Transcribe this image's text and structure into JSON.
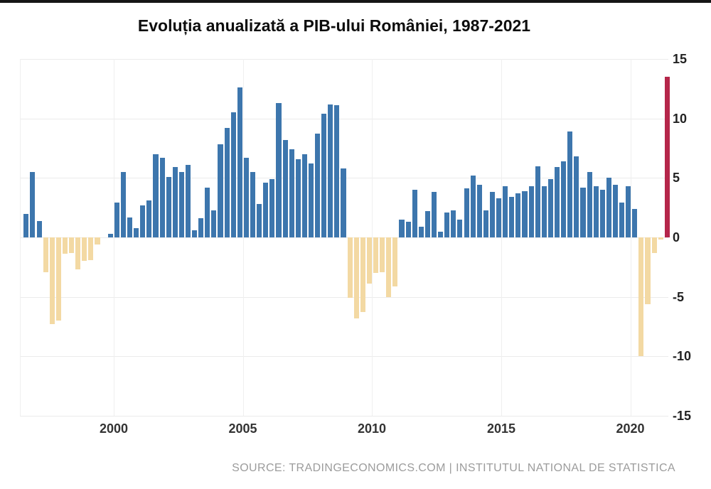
{
  "source_text": "SOURCE: TRADINGECONOMICS.COM | INSTITUTUL NATIONAL DE STATISTICA",
  "colors": {
    "grid": "#ebebeb",
    "vertical_grid": "#efefef",
    "axis_text": "#222222",
    "x_axis_text": "#333333",
    "source_text": "#9c9c9c",
    "top_strip": "#151515"
  },
  "chart_data": {
    "type": "bar",
    "title": "Evoluția anualizată a PIB-ului României, 1987-2021",
    "x_tick_labels": [
      "2000",
      "2005",
      "2010",
      "2015",
      "2020"
    ],
    "y_tick_labels": [
      "15",
      "10",
      "5",
      "0",
      "-5",
      "-10",
      "-15"
    ],
    "y_tick_values": [
      15,
      10,
      5,
      0,
      -5,
      -10,
      -15
    ],
    "ylim": [
      -15,
      15
    ],
    "grid": true,
    "legend": "none",
    "frequency": "quarterly",
    "values": [
      2.0,
      5.5,
      1.4,
      -2.9,
      -7.3,
      -7.0,
      -1.4,
      -1.3,
      -2.7,
      -2.0,
      -1.9,
      -0.6,
      0.0,
      0.3,
      2.9,
      5.5,
      1.7,
      0.8,
      2.7,
      3.1,
      7.0,
      6.7,
      5.1,
      5.9,
      5.5,
      6.1,
      0.6,
      1.6,
      4.2,
      2.3,
      7.8,
      9.2,
      10.5,
      12.6,
      6.7,
      5.5,
      2.8,
      4.6,
      4.9,
      11.3,
      8.2,
      7.4,
      6.6,
      7.0,
      6.2,
      8.7,
      10.4,
      11.2,
      11.1,
      5.8,
      -5.1,
      -6.8,
      -6.3,
      -3.9,
      -3.0,
      -2.9,
      -5.0,
      -4.1,
      1.5,
      1.3,
      4.0,
      0.9,
      2.2,
      3.8,
      0.5,
      2.1,
      2.3,
      1.5,
      4.1,
      5.2,
      4.4,
      2.3,
      3.8,
      3.3,
      4.3,
      3.4,
      3.7,
      3.9,
      4.3,
      6.0,
      4.3,
      4.9,
      5.9,
      6.4,
      8.9,
      6.8,
      4.2,
      5.5,
      4.3,
      4.0,
      5.0,
      4.4,
      2.9,
      4.3,
      2.4,
      -10.0,
      -5.6,
      -1.3,
      -0.2,
      13.5
    ],
    "bar_colors": {
      "positive": "#3d76ad",
      "negative": "#f3d9a3",
      "last_bar_highlight": "#b5264a"
    },
    "highlight_last_bar": true
  }
}
